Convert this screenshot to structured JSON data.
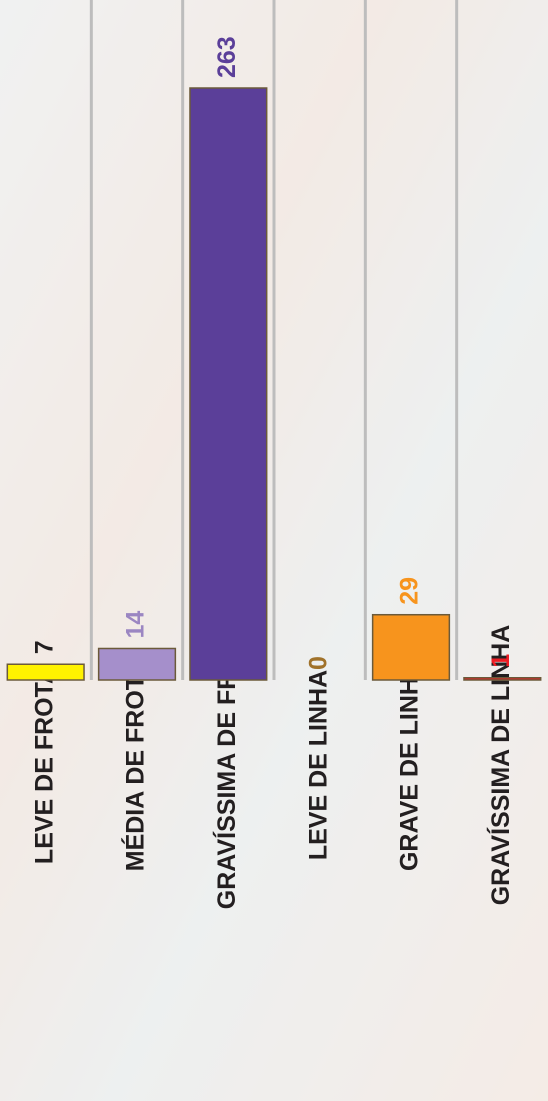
{
  "chart_data": {
    "type": "bar",
    "categories": [
      "LEVE DE FROTA",
      "MÉDIA DE FROTA",
      "GRAVÍSSIMA DE FROTA",
      "LEVE DE LINHA",
      "GRAVE DE LINHA",
      "GRAVÍSSIMA DE LINHA"
    ],
    "values": [
      7,
      14,
      263,
      0,
      29,
      1
    ],
    "colors": [
      "#fff200",
      "#a58fcb",
      "#5b3f99",
      "#a0722a",
      "#f7941d",
      "#ed1c24"
    ],
    "label_colors": [
      "#231f20",
      "#9b86c2",
      "#5b3f99",
      "#a0722a",
      "#f7941d",
      "#ed1c24"
    ],
    "grid": true
  }
}
